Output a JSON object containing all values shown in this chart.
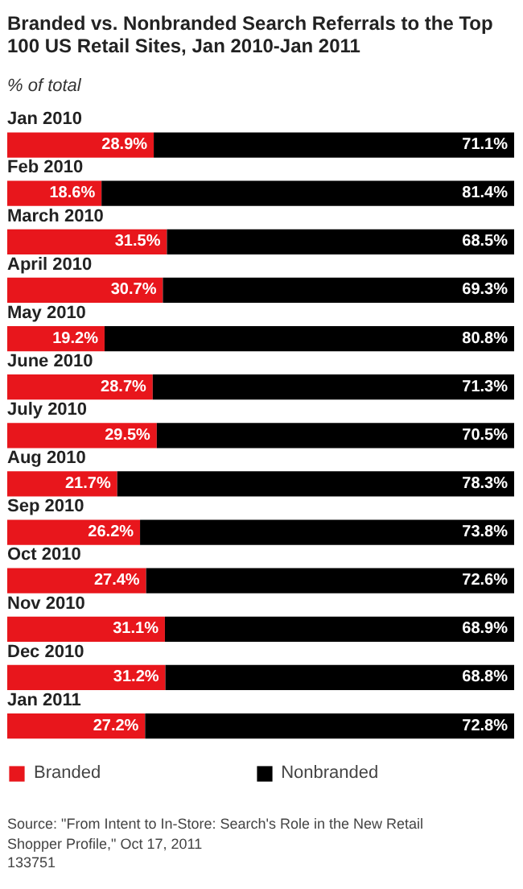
{
  "chart_data": {
    "type": "bar",
    "orientation": "horizontal",
    "stacked": true,
    "title": "Branded vs. Nonbranded Search Referrals to the Top 100 US Retail Sites, Jan 2010-Jan 2011",
    "subtitle": "% of total",
    "categories": [
      "Jan 2010",
      "Feb 2010",
      "March 2010",
      "April 2010",
      "May 2010",
      "June 2010",
      "July 2010",
      "Aug 2010",
      "Sep 2010",
      "Oct 2010",
      "Nov 2010",
      "Dec 2010",
      "Jan 2011"
    ],
    "xlim": [
      0,
      100
    ],
    "legend": "bottom",
    "series": [
      {
        "name": "Branded",
        "color": "#e8161c",
        "values": [
          28.9,
          18.6,
          31.5,
          30.7,
          19.2,
          28.7,
          29.5,
          21.7,
          26.2,
          27.4,
          31.1,
          31.2,
          27.2
        ],
        "value_labels": [
          "28.9%",
          "18.6%",
          "31.5%",
          "30.7%",
          "19.2%",
          "28.7%",
          "29.5%",
          "21.7%",
          "26.2%",
          "27.4%",
          "31.1%",
          "31.2%",
          "27.2%"
        ]
      },
      {
        "name": "Nonbranded",
        "color": "#000000",
        "values": [
          71.1,
          81.4,
          68.5,
          69.3,
          80.8,
          71.3,
          70.5,
          78.3,
          73.8,
          72.6,
          68.9,
          68.8,
          72.8
        ],
        "value_labels": [
          "71.1%",
          "81.4%",
          "68.5%",
          "69.3%",
          "80.8%",
          "71.3%",
          "70.5%",
          "78.3%",
          "73.8%",
          "72.6%",
          "68.9%",
          "68.8%",
          "72.8%"
        ]
      }
    ],
    "annotations": [
      "Source: \"From Intent to In-Store: Search's Role in the New Retail Shopper Profile,\" Oct 17, 2011",
      "133751"
    ]
  }
}
